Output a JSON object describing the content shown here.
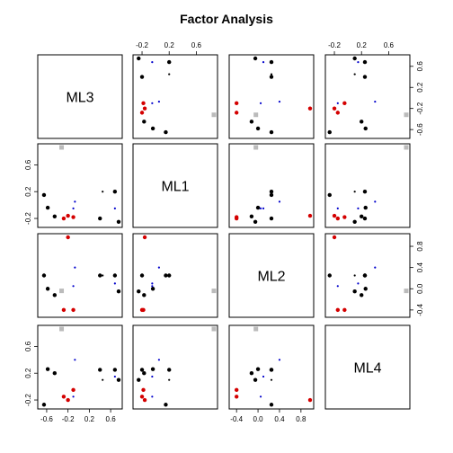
{
  "chart_data": {
    "type": "scatter",
    "title": "Factor Analysis",
    "variables": [
      "ML3",
      "ML1",
      "ML2",
      "ML4"
    ],
    "ranges": [
      [
        -0.7,
        0.75
      ],
      [
        -0.28,
        0.86
      ],
      [
        -0.47,
        0.97
      ],
      [
        -0.28,
        0.86
      ]
    ],
    "top_ticks": {
      "1": {
        "labels": [
          "-0.2",
          "0.2",
          "0.6"
        ],
        "values": [
          -0.2,
          0.2,
          0.6
        ]
      },
      "3": {
        "labels": [
          "-0.2",
          "0.2",
          "0.6"
        ],
        "values": [
          -0.2,
          0.2,
          0.6
        ]
      }
    },
    "bottom_ticks": {
      "0": {
        "labels": [
          "-0.6",
          "-0.2",
          "0.2",
          "0.6"
        ],
        "values": [
          -0.6,
          -0.2,
          0.2,
          0.6
        ]
      },
      "2": {
        "labels": [
          "-0.4",
          "0.0",
          "0.4",
          "0.8"
        ],
        "values": [
          -0.4,
          0.0,
          0.4,
          0.8
        ]
      }
    },
    "left_ticks": {
      "1": {
        "labels": [
          "-0.2",
          "0.2",
          "0.6"
        ],
        "values": [
          -0.2,
          0.2,
          0.6
        ]
      },
      "3": {
        "labels": [
          "-0.2",
          "0.2",
          "0.6"
        ],
        "values": [
          -0.2,
          0.2,
          0.6
        ]
      }
    },
    "right_ticks": {
      "0": {
        "labels": [
          "-0.6",
          "-0.2",
          "0.2",
          "0.6"
        ],
        "values": [
          -0.6,
          -0.2,
          0.2,
          0.6
        ]
      },
      "2": {
        "labels": [
          "-0.4",
          "0.0",
          "0.4",
          "0.8"
        ],
        "values": [
          -0.4,
          0.0,
          0.4,
          0.8
        ]
      }
    },
    "points": [
      {
        "color": "#000000",
        "size": "large",
        "values": [
          0.75,
          -0.25,
          -0.05,
          0.1
        ]
      },
      {
        "color": "#000000",
        "size": "large",
        "values": [
          0.68,
          0.2,
          0.25,
          0.25
        ]
      },
      {
        "color": "#000000",
        "size": "large",
        "values": [
          0.4,
          -0.2,
          0.25,
          0.25
        ]
      },
      {
        "color": "#000000",
        "size": "large",
        "values": [
          -0.45,
          -0.17,
          -0.12,
          0.2
        ]
      },
      {
        "color": "#000000",
        "size": "large",
        "values": [
          -0.58,
          -0.04,
          0.0,
          0.26
        ]
      },
      {
        "color": "#000000",
        "size": "large",
        "values": [
          -0.65,
          0.15,
          0.25,
          -0.27
        ]
      },
      {
        "color": "#d40000",
        "size": "large",
        "values": [
          -0.28,
          -0.2,
          -0.4,
          -0.15
        ]
      },
      {
        "color": "#d40000",
        "size": "large",
        "values": [
          -0.2,
          -0.16,
          0.97,
          -0.2
        ]
      },
      {
        "color": "#d40000",
        "size": "large",
        "values": [
          -0.1,
          -0.18,
          -0.4,
          -0.05
        ]
      },
      {
        "color": "#0000cc",
        "size": "small",
        "values": [
          0.68,
          -0.05,
          0.1,
          0.15
        ]
      },
      {
        "color": "#0000cc",
        "size": "small",
        "values": [
          -0.07,
          0.05,
          0.4,
          0.4
        ]
      },
      {
        "color": "#0000cc",
        "size": "small",
        "values": [
          -0.1,
          -0.05,
          0.05,
          -0.15
        ]
      },
      {
        "color": "#000000",
        "size": "small",
        "values": [
          0.45,
          0.2,
          0.25,
          0.1
        ]
      },
      {
        "color": "#bbbbbb",
        "size": "square",
        "values": [
          -0.32,
          0.86,
          -0.04,
          0.86
        ]
      }
    ]
  }
}
